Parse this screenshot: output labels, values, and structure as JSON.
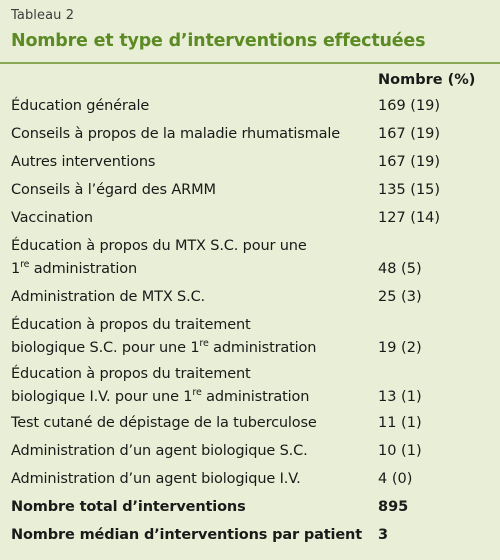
{
  "table": {
    "label": "Tableau 2",
    "title": "Nombre et type d’interventions effectuées",
    "column_header": "Nombre (%)",
    "rows": [
      {
        "label": "Éducation générale",
        "value": "169 (19)"
      },
      {
        "label": "Conseils à propos de la maladie rhumatismale",
        "value": "167 (19)"
      },
      {
        "label": "Autres interventions",
        "value": "167 (19)"
      },
      {
        "label": "Conseils à l’égard des ARMM",
        "value": "135 (15)"
      },
      {
        "label": "Vaccination",
        "value": "127 (14)"
      },
      {
        "label_line1": "Éducation à propos du MTX S.C. pour une",
        "label_line2_pre": "1",
        "label_line2_sup": "re",
        "label_line2_post": " administration",
        "value": "48 (5)"
      },
      {
        "label": "Administration de MTX S.C.",
        "value": "25 (3)"
      },
      {
        "label_line1": "Éducation à propos du traitement",
        "label_line2_pre": "biologique S.C. pour une 1",
        "label_line2_sup": "re",
        "label_line2_post": " administration",
        "value": "19 (2)"
      },
      {
        "label_line1": "Éducation à propos du traitement",
        "label_line2_pre": "biologique I.V. pour une 1",
        "label_line2_sup": "re",
        "label_line2_post": " administration",
        "value": "13 (1)"
      },
      {
        "label": "Test cutané de dépistage de la tuberculose",
        "value": "11 (1)"
      },
      {
        "label": "Administration d’un agent biologique S.C.",
        "value": "10 (1)"
      },
      {
        "label": "Administration d’un agent biologique I.V.",
        "value": "4 (0)"
      },
      {
        "label": "Nombre total d’interventions",
        "value": "895"
      },
      {
        "label": "Nombre médian d’interventions par patient",
        "value": "3"
      }
    ]
  }
}
